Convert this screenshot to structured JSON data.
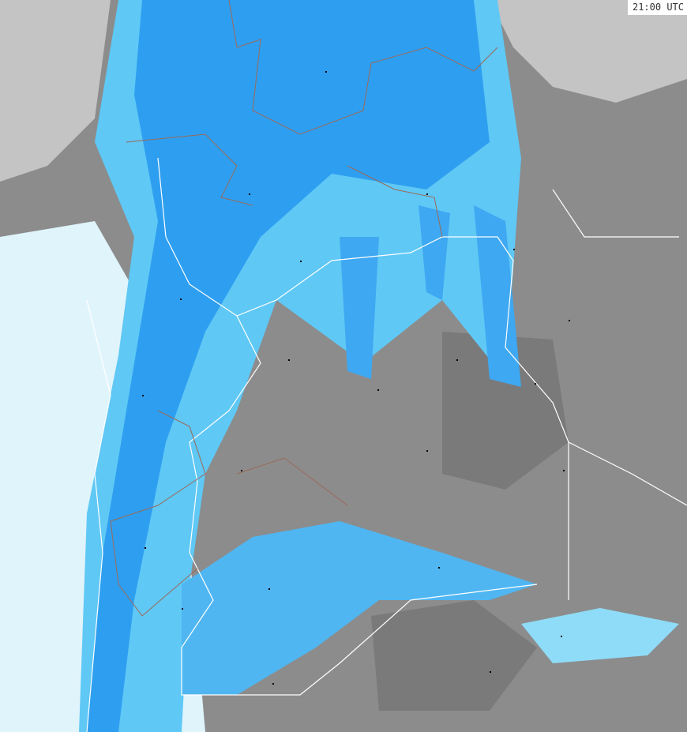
{
  "map": {
    "type": "weather-radar",
    "timestamp_label": "21:00 UTC",
    "colors": {
      "land": "#8c8c8c",
      "land_dark": "#777777",
      "sea": "#c8c8c8",
      "cloud_light": "#e0f4fc",
      "precip_light": "#5fc8f5",
      "precip_medium": "#2e9ff0",
      "precip_heavy": "#3a8ae0",
      "borders": "#ffffff",
      "region_borders": "#9a6a5a"
    },
    "cities_count_note": null
  }
}
